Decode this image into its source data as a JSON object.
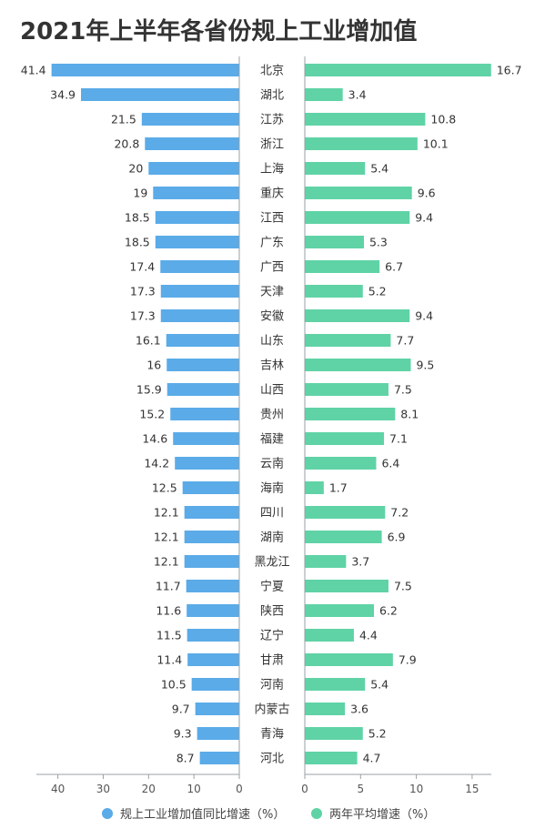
{
  "colors": {
    "left_bar": "#5AABE8",
    "right_bar": "#5FD3A6",
    "axis": "#9aa0a6",
    "text": "#333333"
  },
  "chart_data": {
    "type": "bar",
    "title": "2021年上半年各省份规上工业增加值",
    "categories": [
      "北京",
      "湖北",
      "江苏",
      "浙江",
      "上海",
      "重庆",
      "江西",
      "广东",
      "广西",
      "天津",
      "安徽",
      "山东",
      "吉林",
      "山西",
      "贵州",
      "福建",
      "云南",
      "海南",
      "四川",
      "湖南",
      "黑龙江",
      "宁夏",
      "陕西",
      "辽宁",
      "甘肃",
      "河南",
      "内蒙古",
      "青海",
      "河北"
    ],
    "series": [
      {
        "name": "规上工业增加值同比增速（%）",
        "values": [
          41.4,
          34.9,
          21.5,
          20.8,
          20,
          19,
          18.5,
          18.5,
          17.4,
          17.3,
          17.3,
          16.1,
          16,
          15.9,
          15.2,
          14.6,
          14.2,
          12.5,
          12.1,
          12.1,
          12.1,
          11.7,
          11.6,
          11.5,
          11.4,
          10.5,
          9.7,
          9.3,
          8.7
        ],
        "labels": [
          "41.4",
          "34.9",
          "21.5",
          "20.8",
          "20",
          "19",
          "18.5",
          "18.5",
          "17.4",
          "17.3",
          "17.3",
          "16.1",
          "16",
          "15.9",
          "15.2",
          "14.6",
          "14.2",
          "12.5",
          "12.1",
          "12.1",
          "12.1",
          "11.7",
          "11.6",
          "11.5",
          "11.4",
          "10.5",
          "9.7",
          "9.3",
          "8.7"
        ]
      },
      {
        "name": "两年平均增速（%）",
        "values": [
          16.7,
          3.4,
          10.8,
          10.1,
          5.4,
          9.6,
          9.4,
          5.3,
          6.7,
          5.2,
          9.4,
          7.7,
          9.5,
          7.5,
          8.1,
          7.1,
          6.4,
          1.7,
          7.2,
          6.9,
          3.7,
          7.5,
          6.2,
          4.4,
          7.9,
          5.4,
          3.6,
          5.2,
          4.7
        ],
        "labels": [
          "16.7",
          "3.4",
          "10.8",
          "10.1",
          "5.4",
          "9.6",
          "9.4",
          "5.3",
          "6.7",
          "5.2",
          "9.4",
          "7.7",
          "9.5",
          "7.5",
          "8.1",
          "7.1",
          "6.4",
          "1.7",
          "7.2",
          "6.9",
          "3.7",
          "7.5",
          "6.2",
          "4.4",
          "7.9",
          "5.4",
          "3.6",
          "5.2",
          "4.7"
        ]
      }
    ],
    "left_axis": {
      "range": [
        0,
        42
      ],
      "ticks": [
        "40",
        "30",
        "20",
        "10",
        "0"
      ],
      "direction": "reversed"
    },
    "right_axis": {
      "range": [
        0,
        16.7
      ],
      "ticks": [
        "0",
        "5",
        "10",
        "15"
      ]
    },
    "legend_position": "bottom"
  }
}
